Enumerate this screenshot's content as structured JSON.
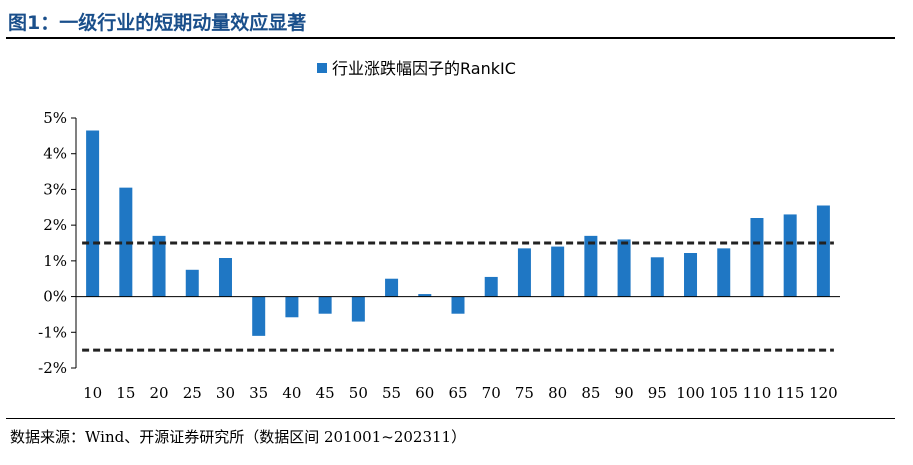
{
  "figure": {
    "title": "图1：一级行业的短期动量效应显著",
    "source": "数据来源：Wind、开源证券研究所（数据区间 201001~202311）"
  },
  "colors": {
    "bar": "#1f77c4",
    "reference_line": "#222222",
    "axis": "#000000",
    "title": "#1a4f8b"
  },
  "chart_data": {
    "type": "bar",
    "title": "",
    "xlabel": "",
    "ylabel": "",
    "categories": [
      "10",
      "15",
      "20",
      "25",
      "30",
      "35",
      "40",
      "45",
      "50",
      "55",
      "60",
      "65",
      "70",
      "75",
      "80",
      "85",
      "90",
      "95",
      "100",
      "105",
      "110",
      "115",
      "120"
    ],
    "series": [
      {
        "name": "行业涨跌幅因子的RankIC",
        "values": [
          4.65,
          3.05,
          1.7,
          0.75,
          1.08,
          -1.1,
          -0.58,
          -0.48,
          -0.7,
          0.5,
          0.07,
          -0.48,
          0.55,
          1.35,
          1.4,
          1.7,
          1.6,
          1.1,
          1.22,
          1.35,
          2.2,
          2.3,
          2.55
        ]
      }
    ],
    "ylim": [
      -2,
      5
    ],
    "yticks": [
      -2,
      -1,
      0,
      1,
      2,
      3,
      4,
      5
    ],
    "ytick_labels": [
      "-2%",
      "-1%",
      "0%",
      "1%",
      "2%",
      "3%",
      "4%",
      "5%"
    ],
    "reference_lines": [
      1.5,
      -1.5
    ],
    "reference_style": "dashed",
    "legend_position": "top-center",
    "grid": false
  }
}
